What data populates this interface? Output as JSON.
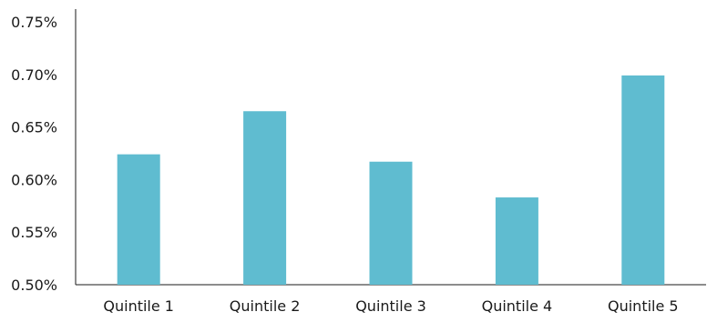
{
  "chart_data": {
    "type": "bar",
    "title": "",
    "xlabel": "",
    "ylabel": "",
    "categories": [
      "Quintile 1",
      "Quintile 2",
      "Quintile 3",
      "Quintile 4",
      "Quintile 5"
    ],
    "values": [
      0.624,
      0.665,
      0.617,
      0.583,
      0.699
    ],
    "ylim": [
      0.5,
      0.75
    ],
    "yticks": [
      0.5,
      0.55,
      0.6,
      0.65,
      0.7,
      0.75
    ],
    "ytick_labels": [
      "0.50%",
      "0.55%",
      "0.60%",
      "0.65%",
      "0.70%",
      "0.75%"
    ],
    "y_unit": "%",
    "grid": false,
    "legend": "none",
    "bar_color": "#5FBCD0"
  }
}
